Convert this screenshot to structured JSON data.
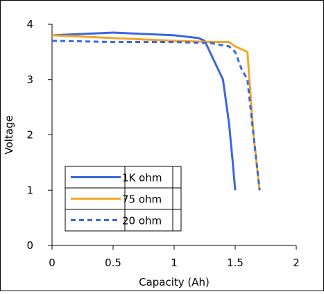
{
  "chart_data": {
    "type": "line",
    "title": "",
    "xlabel": "Capacity (Ah)",
    "ylabel": "Voltage",
    "xlim": [
      0,
      2
    ],
    "ylim": [
      0,
      4
    ],
    "xticks": [
      0,
      0.5,
      1,
      1.5,
      2
    ],
    "yticks": [
      0,
      1,
      2,
      3,
      4
    ],
    "xtick_labels": [
      "0",
      "0.5",
      "1",
      "1.5",
      "2"
    ],
    "ytick_labels": [
      "0",
      "1",
      "2",
      "3",
      "4"
    ],
    "grid": false,
    "legend_position": "lower-left",
    "series": [
      {
        "name": "1K ohm",
        "color": "#3a66e0",
        "dash": "solid",
        "x": [
          0,
          0.5,
          1.0,
          1.2,
          1.25,
          1.4,
          1.45,
          1.48,
          1.5
        ],
        "y": [
          3.8,
          3.85,
          3.8,
          3.75,
          3.7,
          3.0,
          2.2,
          1.5,
          1.0
        ]
      },
      {
        "name": "75 ohm",
        "color": "#f5a623",
        "dash": "solid",
        "x": [
          0,
          0.5,
          1.0,
          1.3,
          1.45,
          1.5,
          1.6,
          1.65,
          1.7
        ],
        "y": [
          3.8,
          3.75,
          3.7,
          3.68,
          3.68,
          3.6,
          3.5,
          2.0,
          1.0
        ]
      },
      {
        "name": "20 ohm",
        "color": "#3a66e0",
        "dash": "dashed",
        "x": [
          0,
          0.5,
          1.0,
          1.3,
          1.45,
          1.5,
          1.55,
          1.6,
          1.65,
          1.7
        ],
        "y": [
          3.7,
          3.68,
          3.68,
          3.66,
          3.6,
          3.5,
          3.2,
          3.0,
          2.0,
          1.0
        ]
      }
    ]
  }
}
